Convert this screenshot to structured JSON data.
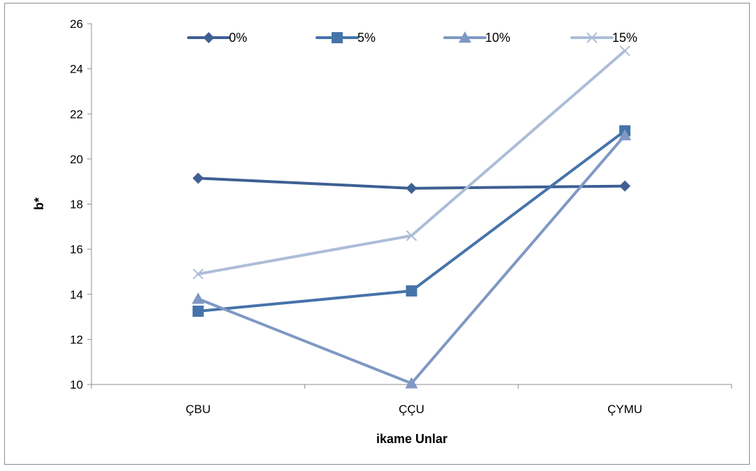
{
  "chart_data": {
    "type": "line",
    "title": "",
    "xlabel": "ikame Unlar",
    "ylabel": "b*",
    "categories": [
      "ÇBU",
      "ÇÇU",
      "ÇYMU"
    ],
    "ylim": [
      10,
      26
    ],
    "yticks": [
      10,
      12,
      14,
      16,
      18,
      20,
      22,
      24,
      26
    ],
    "grid": false,
    "legend_position": "top",
    "series": [
      {
        "name": "0%",
        "values": [
          19.15,
          18.7,
          18.8
        ],
        "color": "#3e5f92",
        "marker": "diamond"
      },
      {
        "name": "5%",
        "values": [
          13.25,
          14.15,
          21.25
        ],
        "color": "#4673aa",
        "marker": "square"
      },
      {
        "name": "10%",
        "values": [
          13.8,
          10.05,
          21.05
        ],
        "color": "#7f98c4",
        "marker": "triangle"
      },
      {
        "name": "15%",
        "values": [
          14.9,
          16.6,
          24.8
        ],
        "color": "#adbcd8",
        "marker": "x"
      }
    ]
  }
}
